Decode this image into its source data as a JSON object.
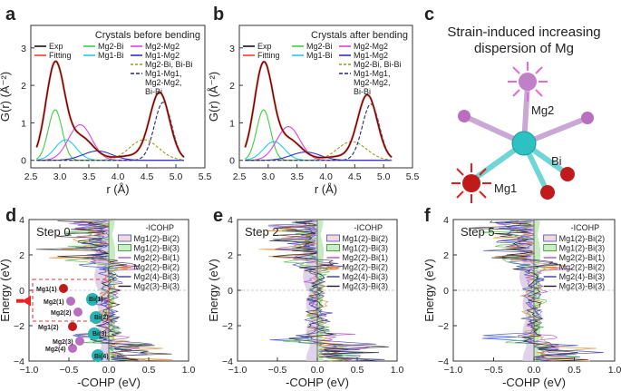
{
  "colors": {
    "exp": "#111111",
    "fitting": "#ff3b2f",
    "mg2_bi": "#3ecf3e",
    "mg1_bi": "#27c7f0",
    "mg2_mg2": "#e43fd6",
    "mg1_mg2": "#2b2fd1",
    "mg2_bi_bi": "#9a9a1a",
    "mixed": "#1f2a7a",
    "cohp_fill_1": "#d7c7e4",
    "cohp_fill_2": "#b9e7b0",
    "mg_sphere": "#c11a1a",
    "bi_sphere": "#25b5b5",
    "mg2_atom": "#c27fc9",
    "mg1_atom": "#c11a1a"
  },
  "panels": {
    "a": {
      "letter": "a"
    },
    "b": {
      "letter": "b"
    },
    "c": {
      "letter": "c"
    },
    "d": {
      "letter": "d"
    },
    "e": {
      "letter": "e"
    },
    "f": {
      "letter": "f"
    }
  },
  "chart_data": [
    {
      "id": "a",
      "type": "line",
      "title": "Crystals before bending",
      "xlabel": "r (Å)",
      "ylabel": "G(r) (Å⁻²)",
      "xlim": [
        2.5,
        5.5
      ],
      "ylim": [
        -0.2,
        3.6
      ],
      "xticks": [
        "2.5",
        "3.0",
        "3.5",
        "4.0",
        "4.5",
        "5.0",
        "5.5"
      ],
      "yticks": [
        "0",
        "1",
        "2",
        "3"
      ],
      "legend": [
        "Exp",
        "Fitting",
        "Mg2-Bi",
        "Mg1-Bi",
        "Mg2-Mg2",
        "Mg1-Mg2",
        "Mg2-Bi, Bi-Bi",
        "Mg1-Mg1,",
        "Mg2-Mg2,",
        "Bi-Bi"
      ],
      "total": {
        "peaks": [
          [
            2.92,
            2.55,
            0.16
          ],
          [
            3.35,
            0.62,
            0.22
          ],
          [
            4.72,
            1.78,
            0.17
          ],
          [
            4.25,
            0.12,
            0.3
          ]
        ]
      },
      "components": [
        {
          "name": "Mg2-Bi",
          "peak": [
            2.92,
            1.35,
            0.12
          ]
        },
        {
          "name": "Mg1-Bi",
          "peak": [
            3.1,
            0.55,
            0.18
          ]
        },
        {
          "name": "Mg2-Mg2",
          "peak": [
            3.35,
            0.95,
            0.2
          ]
        },
        {
          "name": "Mg1-Mg2",
          "peak": [
            3.65,
            0.25,
            0.25
          ]
        },
        {
          "name": "Mg2-Bi, Bi-Bi",
          "peak": [
            4.45,
            0.55,
            0.25
          ]
        },
        {
          "name": "Mg1-Mg1, Mg2-Mg2, Bi-Bi",
          "peak": [
            4.78,
            1.55,
            0.15
          ]
        }
      ]
    },
    {
      "id": "b",
      "type": "line",
      "title": "Crystals after bending",
      "xlabel": "r (Å)",
      "ylabel": "G(r) (Å⁻²)",
      "xlim": [
        2.5,
        5.5
      ],
      "ylim": [
        -0.2,
        3.6
      ],
      "xticks": [
        "2.5",
        "3.0",
        "3.5",
        "4.0",
        "4.5",
        "5.0",
        "5.5"
      ],
      "yticks": [
        "0",
        "1",
        "2",
        "3"
      ],
      "legend": [
        "Exp",
        "Fitting",
        "Mg2-Bi",
        "Mg1-Bi",
        "Mg2-Mg2",
        "Mg1-Mg2",
        "Mg2-Bi, Bi-Bi",
        "Mg1-Mg1,",
        "Mg2-Mg2,",
        "Bi-Bi"
      ],
      "total": {
        "peaks": [
          [
            2.92,
            2.55,
            0.16
          ],
          [
            3.35,
            0.55,
            0.22
          ],
          [
            4.72,
            1.72,
            0.17
          ],
          [
            4.25,
            0.1,
            0.3
          ]
        ]
      },
      "components": [
        {
          "name": "Mg2-Bi",
          "peak": [
            2.92,
            1.35,
            0.12
          ]
        },
        {
          "name": "Mg1-Bi",
          "peak": [
            3.1,
            0.5,
            0.18
          ]
        },
        {
          "name": "Mg2-Mg2",
          "peak": [
            3.35,
            0.9,
            0.2
          ]
        },
        {
          "name": "Mg1-Mg2",
          "peak": [
            3.65,
            0.22,
            0.25
          ]
        },
        {
          "name": "Mg2-Bi, Bi-Bi",
          "peak": [
            4.45,
            0.5,
            0.25
          ]
        },
        {
          "name": "Mg1-Mg1, Mg2-Mg2, Bi-Bi",
          "peak": [
            4.78,
            1.5,
            0.15
          ]
        }
      ]
    },
    {
      "id": "d",
      "type": "line",
      "step": "Step 0",
      "xlabel": "-COHP (eV)",
      "ylabel": "Energy (eV)",
      "xlim": [
        -1.0,
        1.0
      ],
      "ylim": [
        -4,
        4
      ],
      "xticks": [
        "−1.0",
        "−0.5",
        "0.0",
        "0.5",
        "1.0"
      ],
      "yticks": [
        "−4",
        "−2",
        "0",
        "2",
        "4"
      ],
      "legend_title": "-ICOHP",
      "legend": [
        "Mg1(2)-Bi(2)",
        "Mg1(2)-Bi(3)",
        "Mg2(2)-Bi(1)",
        "Mg2(2)-Bi(2)",
        "Mg2(4)-Bi(3)",
        "Mg2(3)-Bi(3)"
      ],
      "structure_labels": [
        "Mg1(1)",
        "Mg2(1)",
        "Bi(1)",
        "Mg2(2)",
        "Bi(2)",
        "Mg1(2)",
        "Bi(3)",
        "Mg2(3)",
        "Mg2(4)",
        "Bi(4)"
      ]
    },
    {
      "id": "e",
      "type": "line",
      "step": "Step 2",
      "xlabel": "-COHP (eV)",
      "ylabel": "Energy (eV)",
      "xlim": [
        -1.0,
        1.0
      ],
      "ylim": [
        -4,
        4
      ],
      "xticks": [
        "−1.0",
        "−0.5",
        "0.0",
        "0.5",
        "1.0"
      ],
      "yticks": [
        "−4",
        "−2",
        "0",
        "2",
        "4"
      ],
      "legend_title": "-ICOHP",
      "legend": [
        "Mg1(2)-Bi(2)",
        "Mg1(2)-Bi(3)",
        "Mg2(2)-Bi(1)",
        "Mg2(2)-Bi(2)",
        "Mg2(4)-Bi(3)",
        "Mg2(3)-Bi(3)"
      ]
    },
    {
      "id": "f",
      "type": "line",
      "step": "Step 5",
      "xlabel": "-COHP (eV)",
      "ylabel": "Energy (eV)",
      "xlim": [
        -1.0,
        1.0
      ],
      "ylim": [
        -4,
        4
      ],
      "xticks": [
        "−1.0",
        "−0.5",
        "0.0",
        "0.5",
        "1.0"
      ],
      "yticks": [
        "−4",
        "−2",
        "0",
        "2",
        "4"
      ],
      "legend_title": "-ICOHP",
      "legend": [
        "Mg1(2)-Bi(2)",
        "Mg1(2)-Bi(3)",
        "Mg2(2)-Bi(1)",
        "Mg2(2)-Bi(2)",
        "Mg2(4)-Bi(3)",
        "Mg2(3)-Bi(3)"
      ]
    }
  ],
  "panel_c": {
    "caption_line1": "Strain-induced increasing",
    "caption_line2": "dispersion of Mg",
    "labels": [
      "Mg2",
      "Bi",
      "Mg1"
    ]
  }
}
